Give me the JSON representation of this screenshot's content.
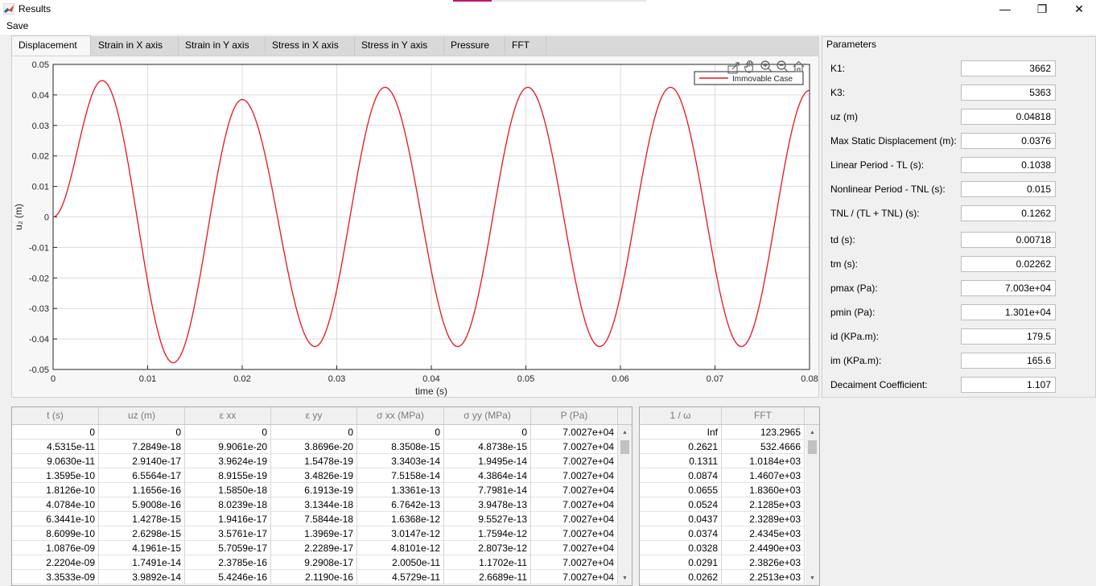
{
  "window": {
    "title": "Results",
    "controls": {
      "minimize": "—",
      "maximize": "❐",
      "close": "✕"
    }
  },
  "menu": {
    "save": "Save"
  },
  "tabs": [
    "Displacement",
    "Strain in X axis",
    "Strain in Y axis",
    "Stress in X axis",
    "Stress in Y axis",
    "Pressure",
    "FFT"
  ],
  "active_tab": "Displacement",
  "colors": {
    "line": "#e8141c",
    "grid": "#dcdcdc"
  },
  "plot_toolbar_icons": [
    "export-icon",
    "pan-icon",
    "zoom-in-icon",
    "zoom-out-icon",
    "home-icon"
  ],
  "chart_data": {
    "type": "line",
    "xlabel": "time (s)",
    "ylabel": "u₂ (m)",
    "xlim": [
      0,
      0.08
    ],
    "ylim": [
      -0.05,
      0.05
    ],
    "xticks": [
      "0",
      "0.01",
      "0.02",
      "0.03",
      "0.04",
      "0.05",
      "0.06",
      "0.07",
      "0.08"
    ],
    "yticks": [
      "0.05",
      "0.04",
      "0.03",
      "0.02",
      "0.01",
      "0",
      "-0.01",
      "-0.02",
      "-0.03",
      "-0.04",
      "-0.05"
    ],
    "grid": true,
    "legend": {
      "placement": "top-right",
      "entries": [
        "Immovable Case"
      ]
    },
    "series": [
      {
        "name": "Immovable Case",
        "x": [
          0,
          0.0052,
          0.0127,
          0.02,
          0.0277,
          0.0351,
          0.0428,
          0.0502,
          0.0578,
          0.0653,
          0.0728,
          0.08
        ],
        "values": [
          0,
          0.0447,
          -0.0478,
          0.0385,
          -0.0425,
          0.0425,
          -0.0425,
          0.0425,
          -0.0425,
          0.0425,
          -0.0425,
          0.0415
        ]
      }
    ]
  },
  "parameters": {
    "title": "Parameters",
    "items": [
      {
        "label": "K1:",
        "value": "3662"
      },
      {
        "label": "K3:",
        "value": "5363"
      },
      {
        "label": "uz (m)",
        "value": "0.04818"
      },
      {
        "label": "Max Static Displacement (m):",
        "value": "0.0376"
      },
      {
        "label": "Linear Period - TL (s):",
        "value": "0.1038"
      },
      {
        "label": "Nonlinear Period - TNL (s):",
        "value": "0.015"
      },
      {
        "label": "TNL / (TL + TNL) (s):",
        "value": "0.1262"
      },
      {
        "label": "td (s):",
        "value": "0.00718"
      },
      {
        "label": "tm (s):",
        "value": "0.02262"
      },
      {
        "label": "pmax (Pa):",
        "value": "7.003e+04"
      },
      {
        "label": "pmin (Pa):",
        "value": "1.301e+04"
      },
      {
        "label": "id (KPa.m):",
        "value": "179.5"
      },
      {
        "label": "im (KPa.m):",
        "value": "165.6"
      },
      {
        "label": "Decaiment Coefficient:",
        "value": "1.107"
      }
    ]
  },
  "data_table": {
    "headers": [
      "t (s)",
      "uz (m)",
      "ε xx",
      "ε yy",
      "σ xx (MPa)",
      "σ yy (MPa)",
      "P (Pa)"
    ],
    "rows": [
      [
        "0",
        "0",
        "0",
        "0",
        "0",
        "0",
        "7.0027e+04"
      ],
      [
        "4.5315e-11",
        "7.2849e-18",
        "9.9061e-20",
        "3.8696e-20",
        "8.3508e-15",
        "4.8738e-15",
        "7.0027e+04"
      ],
      [
        "9.0630e-11",
        "2.9140e-17",
        "3.9624e-19",
        "1.5478e-19",
        "3.3403e-14",
        "1.9495e-14",
        "7.0027e+04"
      ],
      [
        "1.3595e-10",
        "6.5564e-17",
        "8.9155e-19",
        "3.4826e-19",
        "7.5158e-14",
        "4.3864e-14",
        "7.0027e+04"
      ],
      [
        "1.8126e-10",
        "1.1656e-16",
        "1.5850e-18",
        "6.1913e-19",
        "1.3361e-13",
        "7.7981e-14",
        "7.0027e+04"
      ],
      [
        "4.0784e-10",
        "5.9008e-16",
        "8.0239e-18",
        "3.1344e-18",
        "6.7642e-13",
        "3.9478e-13",
        "7.0027e+04"
      ],
      [
        "6.3441e-10",
        "1.4278e-15",
        "1.9416e-17",
        "7.5844e-18",
        "1.6368e-12",
        "9.5527e-13",
        "7.0027e+04"
      ],
      [
        "8.6099e-10",
        "2.6298e-15",
        "3.5761e-17",
        "1.3969e-17",
        "3.0147e-12",
        "1.7594e-12",
        "7.0027e+04"
      ],
      [
        "1.0876e-09",
        "4.1961e-15",
        "5.7059e-17",
        "2.2289e-17",
        "4.8101e-12",
        "2.8073e-12",
        "7.0027e+04"
      ],
      [
        "2.2204e-09",
        "1.7491e-14",
        "2.3785e-16",
        "9.2908e-17",
        "2.0050e-11",
        "1.1702e-11",
        "7.0027e+04"
      ],
      [
        "3.3533e-09",
        "3.9892e-14",
        "5.4246e-16",
        "2.1190e-16",
        "4.5729e-11",
        "2.6689e-11",
        "7.0027e+04"
      ]
    ]
  },
  "fft_table": {
    "headers": [
      "1 / ω",
      "FFT"
    ],
    "rows": [
      [
        "Inf",
        "123.2965"
      ],
      [
        "0.2621",
        "532.4666"
      ],
      [
        "0.1311",
        "1.0184e+03"
      ],
      [
        "0.0874",
        "1.4607e+03"
      ],
      [
        "0.0655",
        "1.8360e+03"
      ],
      [
        "0.0524",
        "2.1285e+03"
      ],
      [
        "0.0437",
        "2.3289e+03"
      ],
      [
        "0.0374",
        "2.4345e+03"
      ],
      [
        "0.0328",
        "2.4490e+03"
      ],
      [
        "0.0291",
        "2.3826e+03"
      ],
      [
        "0.0262",
        "2.2513e+03"
      ]
    ]
  },
  "scroll_icons": {
    "up": "▲",
    "down": "▼"
  }
}
